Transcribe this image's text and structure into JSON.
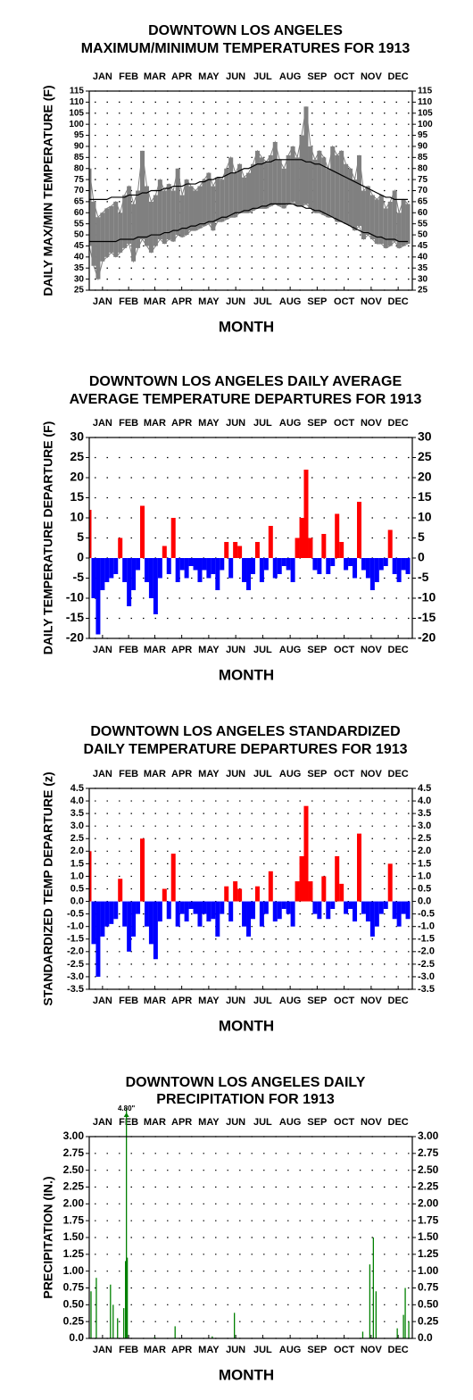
{
  "chart_data": [
    {
      "type": "line",
      "title": [
        "DOWNTOWN LOS ANGELES",
        "MAXIMUM/MINIMUM TEMPERATURES FOR 1913"
      ],
      "ylabel": "DAILY MAX/MIN TEMPERATURE (F)",
      "xlabel": "MONTH",
      "range": true,
      "grid": true,
      "xlim": [
        1,
        366
      ],
      "xticks": [
        {
          "value": 16,
          "label": "JAN"
        },
        {
          "value": 45.5,
          "label": "FEB"
        },
        {
          "value": 75,
          "label": "MAR"
        },
        {
          "value": 105.5,
          "label": "APR"
        },
        {
          "value": 136,
          "label": "MAY"
        },
        {
          "value": 166.5,
          "label": "JUN"
        },
        {
          "value": 197,
          "label": "JUL"
        },
        {
          "value": 228,
          "label": "AUG"
        },
        {
          "value": 258.5,
          "label": "SEP"
        },
        {
          "value": 289,
          "label": "OCT"
        },
        {
          "value": 319.5,
          "label": "NOV"
        },
        {
          "value": 350,
          "label": "DEC"
        }
      ],
      "ylim": [
        25,
        115
      ],
      "yticks": [
        25,
        30,
        35,
        40,
        45,
        50,
        55,
        60,
        65,
        70,
        75,
        80,
        85,
        90,
        95,
        100,
        105,
        110,
        115
      ],
      "x": [
        1,
        6,
        11,
        16,
        21,
        26,
        31,
        36,
        41,
        46,
        51,
        56,
        61,
        66,
        71,
        76,
        81,
        86,
        91,
        96,
        101,
        106,
        111,
        116,
        121,
        126,
        131,
        136,
        141,
        146,
        151,
        156,
        161,
        166,
        171,
        176,
        181,
        186,
        191,
        196,
        201,
        206,
        211,
        216,
        221,
        226,
        231,
        236,
        241,
        246,
        251,
        256,
        261,
        266,
        271,
        276,
        281,
        286,
        291,
        296,
        301,
        306,
        311,
        316,
        321,
        326,
        331,
        336,
        341,
        346,
        351,
        356,
        361
      ],
      "series": [
        {
          "color": "#808080",
          "values": [
            80,
            65,
            58,
            60,
            62,
            63,
            65,
            60,
            68,
            72,
            64,
            70,
            88,
            72,
            65,
            68,
            75,
            70,
            73,
            70,
            80,
            68,
            75,
            72,
            70,
            72,
            75,
            78,
            72,
            76,
            75,
            80,
            85,
            78,
            82,
            76,
            78,
            82,
            88,
            85,
            83,
            86,
            92,
            84,
            80,
            86,
            90,
            85,
            95,
            108,
            90,
            84,
            88,
            85,
            80,
            90,
            86,
            88,
            82,
            80,
            75,
            86,
            70,
            72,
            68,
            66,
            68,
            62,
            65,
            70,
            60,
            66,
            64
          ]
        },
        {
          "color": "#808080",
          "values": [
            45,
            36,
            30,
            38,
            40,
            42,
            40,
            42,
            44,
            46,
            38,
            44,
            48,
            45,
            42,
            45,
            48,
            46,
            48,
            47,
            50,
            49,
            50,
            52,
            52,
            53,
            54,
            55,
            52,
            56,
            56,
            57,
            58,
            58,
            60,
            60,
            60,
            61,
            62,
            62,
            62,
            63,
            64,
            63,
            62,
            64,
            65,
            63,
            63,
            64,
            62,
            60,
            60,
            59,
            58,
            58,
            56,
            56,
            55,
            54,
            52,
            54,
            48,
            50,
            48,
            46,
            46,
            44,
            45,
            47,
            44,
            45,
            46
          ]
        },
        {
          "color": "#000000",
          "values": [
            66,
            66,
            66,
            66,
            66,
            67,
            67,
            67,
            67,
            68,
            68,
            68,
            69,
            69,
            70,
            70,
            70,
            71,
            71,
            72,
            72,
            72,
            73,
            73,
            73,
            74,
            74,
            75,
            75,
            76,
            76,
            77,
            78,
            78,
            79,
            80,
            80,
            81,
            82,
            82,
            83,
            83,
            84,
            84,
            84,
            84,
            84,
            84,
            84,
            83,
            83,
            82,
            82,
            81,
            80,
            79,
            78,
            77,
            76,
            75,
            74,
            73,
            72,
            71,
            70,
            69,
            68,
            67,
            67,
            66,
            66,
            66,
            66
          ]
        },
        {
          "color": "#000000",
          "values": [
            47,
            47,
            47,
            47,
            47,
            47,
            47,
            48,
            48,
            48,
            48,
            49,
            49,
            49,
            50,
            50,
            50,
            51,
            51,
            52,
            52,
            53,
            53,
            54,
            54,
            55,
            55,
            56,
            56,
            57,
            58,
            58,
            59,
            60,
            60,
            61,
            61,
            62,
            62,
            63,
            63,
            64,
            64,
            64,
            64,
            64,
            64,
            63,
            63,
            62,
            62,
            61,
            61,
            60,
            59,
            58,
            57,
            56,
            55,
            54,
            53,
            52,
            51,
            51,
            50,
            49,
            49,
            48,
            48,
            48,
            47,
            47,
            47
          ]
        }
      ]
    },
    {
      "type": "bar",
      "title": [
        "DOWNTOWN LOS ANGELES DAILY AVERAGE",
        "AVERAGE TEMPERATURE DEPARTURES FOR 1913"
      ],
      "ylabel": "DAILY TEMPERATURE DEPARTURE (F)",
      "xlabel": "MONTH",
      "grid": true,
      "color": "#ff0000",
      "negative_color": "#0000ff",
      "xlim": [
        1,
        366
      ],
      "xticks": [
        {
          "value": 16,
          "label": "JAN"
        },
        {
          "value": 45.5,
          "label": "FEB"
        },
        {
          "value": 75,
          "label": "MAR"
        },
        {
          "value": 105.5,
          "label": "APR"
        },
        {
          "value": 136,
          "label": "MAY"
        },
        {
          "value": 166.5,
          "label": "JUN"
        },
        {
          "value": 197,
          "label": "JUL"
        },
        {
          "value": 228,
          "label": "AUG"
        },
        {
          "value": 258.5,
          "label": "SEP"
        },
        {
          "value": 289,
          "label": "OCT"
        },
        {
          "value": 319.5,
          "label": "NOV"
        },
        {
          "value": 350,
          "label": "DEC"
        }
      ],
      "ylim": [
        -20,
        30
      ],
      "yticks": [
        -20,
        -15,
        -10,
        -5,
        0,
        5,
        10,
        15,
        20,
        25,
        30
      ],
      "x": [
        1,
        6,
        11,
        16,
        21,
        26,
        31,
        36,
        41,
        46,
        51,
        56,
        61,
        66,
        71,
        76,
        81,
        86,
        91,
        96,
        101,
        106,
        111,
        116,
        121,
        126,
        131,
        136,
        141,
        146,
        151,
        156,
        161,
        166,
        171,
        176,
        181,
        186,
        191,
        196,
        201,
        206,
        211,
        216,
        221,
        226,
        231,
        236,
        241,
        246,
        251,
        256,
        261,
        266,
        271,
        276,
        281,
        286,
        291,
        296,
        301,
        306,
        311,
        316,
        321,
        326,
        331,
        336,
        341,
        346,
        351,
        356,
        361
      ],
      "values": [
        12,
        -10,
        -19,
        -8,
        -6,
        -5,
        -4,
        5,
        -6,
        -12,
        -8,
        -3,
        13,
        -6,
        -10,
        -14,
        -5,
        3,
        -4,
        10,
        -6,
        -3,
        -5,
        -2,
        -3,
        -6,
        -3,
        -5,
        -4,
        -8,
        -3,
        4,
        -5,
        4,
        3,
        -6,
        -8,
        -4,
        4,
        -6,
        -3,
        8,
        -5,
        -4,
        -2,
        -3,
        -6,
        5,
        10,
        22,
        5,
        -3,
        -4,
        6,
        -4,
        -2,
        11,
        4,
        -3,
        -2,
        -5,
        14,
        -3,
        -5,
        -8,
        -6,
        -3,
        -2,
        7,
        -4,
        -6,
        -3,
        -4
      ]
    },
    {
      "type": "bar",
      "title": [
        "DOWNTOWN LOS ANGELES STANDARDIZED",
        "DAILY TEMPERATURE DEPARTURES FOR 1913"
      ],
      "ylabel": "STANDARDIZED TEMP DEPARTURE (z)",
      "xlabel": "MONTH",
      "grid": true,
      "color": "#ff0000",
      "negative_color": "#0000ff",
      "xlim": [
        1,
        366
      ],
      "xticks": [
        {
          "value": 16,
          "label": "JAN"
        },
        {
          "value": 45.5,
          "label": "FEB"
        },
        {
          "value": 75,
          "label": "MAR"
        },
        {
          "value": 105.5,
          "label": "APR"
        },
        {
          "value": 136,
          "label": "MAY"
        },
        {
          "value": 166.5,
          "label": "JUN"
        },
        {
          "value": 197,
          "label": "JUL"
        },
        {
          "value": 228,
          "label": "AUG"
        },
        {
          "value": 258.5,
          "label": "SEP"
        },
        {
          "value": 289,
          "label": "OCT"
        },
        {
          "value": 319.5,
          "label": "NOV"
        },
        {
          "value": 350,
          "label": "DEC"
        }
      ],
      "ylim": [
        -3.5,
        4.5
      ],
      "yticks": [
        -3.5,
        {
          "value": -3,
          "label": "-3.0"
        },
        -2.5,
        {
          "value": -2,
          "label": "-2.0"
        },
        -1.5,
        {
          "value": -1,
          "label": "-1.0"
        },
        -0.5,
        {
          "value": 0,
          "label": "0.0"
        },
        0.5,
        {
          "value": 1,
          "label": "1.0"
        },
        1.5,
        {
          "value": 2,
          "label": "2.0"
        },
        2.5,
        {
          "value": 3,
          "label": "3.0"
        },
        3.5,
        {
          "value": 4,
          "label": "4.0"
        },
        4.5
      ],
      "x": [
        1,
        6,
        11,
        16,
        21,
        26,
        31,
        36,
        41,
        46,
        51,
        56,
        61,
        66,
        71,
        76,
        81,
        86,
        91,
        96,
        101,
        106,
        111,
        116,
        121,
        126,
        131,
        136,
        141,
        146,
        151,
        156,
        161,
        166,
        171,
        176,
        181,
        186,
        191,
        196,
        201,
        206,
        211,
        216,
        221,
        226,
        231,
        236,
        241,
        246,
        251,
        256,
        261,
        266,
        271,
        276,
        281,
        286,
        291,
        296,
        301,
        306,
        311,
        316,
        321,
        326,
        331,
        336,
        341,
        346,
        351,
        356,
        361
      ],
      "values": [
        2.0,
        -1.7,
        -3.0,
        -1.4,
        -1.0,
        -0.9,
        -0.7,
        0.9,
        -1.0,
        -2.0,
        -1.4,
        -0.5,
        2.5,
        -1.0,
        -1.7,
        -2.3,
        -0.8,
        0.5,
        -0.7,
        1.9,
        -1.0,
        -0.5,
        -0.8,
        -0.3,
        -0.5,
        -1.0,
        -0.5,
        -0.8,
        -0.7,
        -1.4,
        -0.5,
        0.6,
        -0.8,
        0.8,
        0.5,
        -1.0,
        -1.4,
        -0.7,
        0.6,
        -1.0,
        -0.5,
        1.2,
        -0.8,
        -0.7,
        -0.3,
        -0.5,
        -1.0,
        0.8,
        1.8,
        3.8,
        0.8,
        -0.5,
        -0.7,
        1.0,
        -0.7,
        -0.3,
        1.8,
        0.7,
        -0.5,
        -0.3,
        -0.8,
        2.7,
        -0.5,
        -0.8,
        -1.4,
        -1.0,
        -0.5,
        -0.3,
        1.5,
        -0.7,
        -1.0,
        -0.5,
        -0.7
      ]
    },
    {
      "type": "bar",
      "title": [
        "DOWNTOWN LOS ANGELES DAILY",
        "PRECIPITATION FOR 1913"
      ],
      "ylabel": "PRECIPITATION (IN.)",
      "xlabel": "MONTH",
      "grid": true,
      "color": "#008000",
      "xlim": [
        1,
        366
      ],
      "xticks": [
        {
          "value": 16,
          "label": "JAN"
        },
        {
          "value": 45.5,
          "label": "FEB"
        },
        {
          "value": 75,
          "label": "MAR"
        },
        {
          "value": 105.5,
          "label": "APR"
        },
        {
          "value": 136,
          "label": "MAY"
        },
        {
          "value": 166.5,
          "label": "JUN"
        },
        {
          "value": 197,
          "label": "JUL"
        },
        {
          "value": 228,
          "label": "AUG"
        },
        {
          "value": 258.5,
          "label": "SEP"
        },
        {
          "value": 289,
          "label": "OCT"
        },
        {
          "value": 319.5,
          "label": "NOV"
        },
        {
          "value": 350,
          "label": "DEC"
        }
      ],
      "ylim": [
        0,
        3
      ],
      "yticks": [
        {
          "value": 0,
          "label": "0.0"
        },
        0.25,
        {
          "value": 0.5,
          "label": "0.50"
        },
        0.75,
        {
          "value": 1,
          "label": "1.00"
        },
        1.25,
        {
          "value": 1.5,
          "label": "1.50"
        },
        1.75,
        {
          "value": 2,
          "label": "2.00"
        },
        2.25,
        {
          "value": 2.5,
          "label": "2.50"
        },
        2.75,
        {
          "value": 3,
          "label": "3.00"
        }
      ],
      "x": [
        3,
        9,
        25,
        28,
        33,
        40,
        42,
        43,
        44,
        75,
        98,
        140,
        165,
        310,
        318,
        322,
        325,
        349,
        356,
        358,
        362
      ],
      "values": [
        0.7,
        0.9,
        0.8,
        0.5,
        0.3,
        0.45,
        1.15,
        4.8,
        1.2,
        0.02,
        0.18,
        0.03,
        0.38,
        0.1,
        1.1,
        1.5,
        0.7,
        0.15,
        0.35,
        0.75,
        0.25
      ],
      "value_labels": [
        null,
        null,
        null,
        null,
        null,
        null,
        null,
        "4.80\"",
        null,
        null,
        null,
        null,
        null,
        null,
        null,
        null,
        null,
        null,
        null,
        null,
        null
      ]
    }
  ]
}
